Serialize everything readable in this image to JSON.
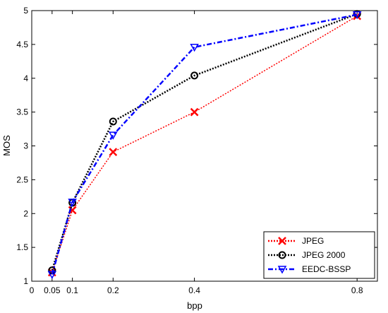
{
  "chart_data": {
    "type": "line",
    "title": "",
    "xlabel": "bpp",
    "ylabel": "MOS",
    "xlim": [
      0,
      0.85
    ],
    "ylim": [
      1,
      5
    ],
    "xticks": [
      0,
      0.05,
      0.1,
      0.2,
      0.4,
      0.8
    ],
    "xtick_labels": [
      "0",
      "0.05",
      "0.1",
      "0.2",
      "0.4",
      "0.8"
    ],
    "yticks": [
      1,
      1.5,
      2,
      2.5,
      3,
      3.5,
      4,
      4.5,
      5
    ],
    "ytick_labels": [
      "1",
      "1.5",
      "2",
      "2.5",
      "3",
      "3.5",
      "4",
      "4.5",
      "5"
    ],
    "grid": false,
    "legend_position": "bottom-right",
    "x": [
      0.05,
      0.1,
      0.2,
      0.4,
      0.8
    ],
    "series": [
      {
        "name": "JPEG",
        "values": [
          1.13,
          2.05,
          2.91,
          3.5,
          4.92
        ],
        "color": "#ff0000",
        "marker": "x",
        "line_style": "dotted"
      },
      {
        "name": "JPEG 2000",
        "values": [
          1.16,
          2.16,
          3.36,
          4.04,
          4.95
        ],
        "color": "#000000",
        "marker": "circle",
        "line_style": "dotted"
      },
      {
        "name": "EEDC-BSSP",
        "values": [
          1.1,
          2.17,
          3.16,
          4.46,
          4.94
        ],
        "color": "#0000ff",
        "marker": "triangle-down",
        "line_style": "dashdot"
      }
    ]
  }
}
